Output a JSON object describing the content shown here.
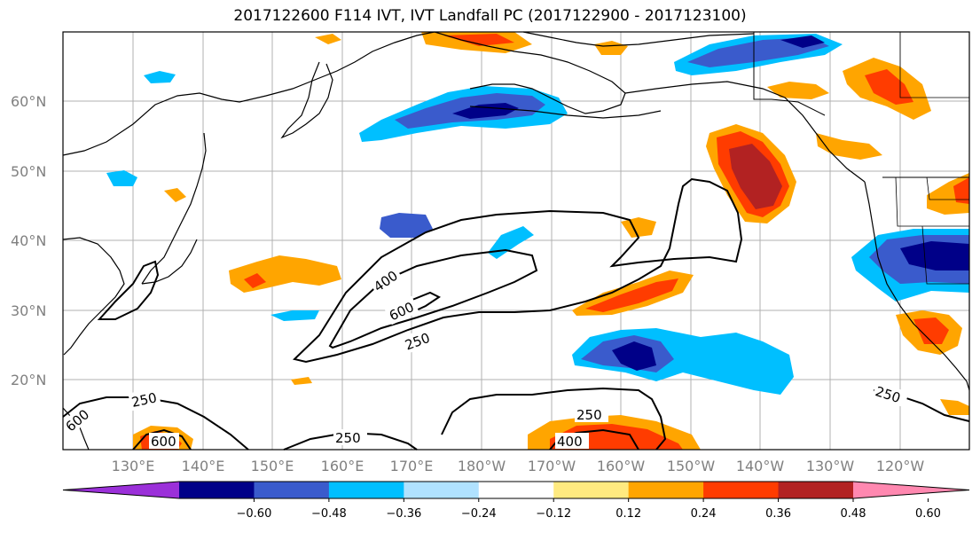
{
  "title": "2017122600 F114 IVT, IVT Landfall PC (2017122900 - 2017123100)",
  "lat_labels": [
    "60°N",
    "50°N",
    "40°N",
    "30°N",
    "20°N"
  ],
  "lon_labels": [
    "130°E",
    "140°E",
    "150°E",
    "160°E",
    "170°E",
    "180°W",
    "170°W",
    "160°W",
    "150°W",
    "140°W",
    "130°W",
    "120°W"
  ],
  "contour_labels": [
    {
      "text": "400"
    },
    {
      "text": "600"
    },
    {
      "text": "250"
    },
    {
      "text": "250"
    },
    {
      "text": "600"
    },
    {
      "text": "250"
    },
    {
      "text": "250"
    },
    {
      "text": "400"
    },
    {
      "text": "250"
    },
    {
      "text": "600"
    }
  ],
  "colorbar": {
    "colors": [
      "#9b30d9",
      "#000088",
      "#3a5bcc",
      "#00bfff",
      "#b0e2ff",
      "#ffffff",
      "#ffea80",
      "#ffa500",
      "#ff3c00",
      "#b22222",
      "#ff88b0"
    ],
    "tick_labels": [
      "−0.60",
      "−0.48",
      "−0.36",
      "−0.24",
      "−0.12",
      "0.12",
      "0.24",
      "0.36",
      "0.48",
      "0.60"
    ]
  }
}
